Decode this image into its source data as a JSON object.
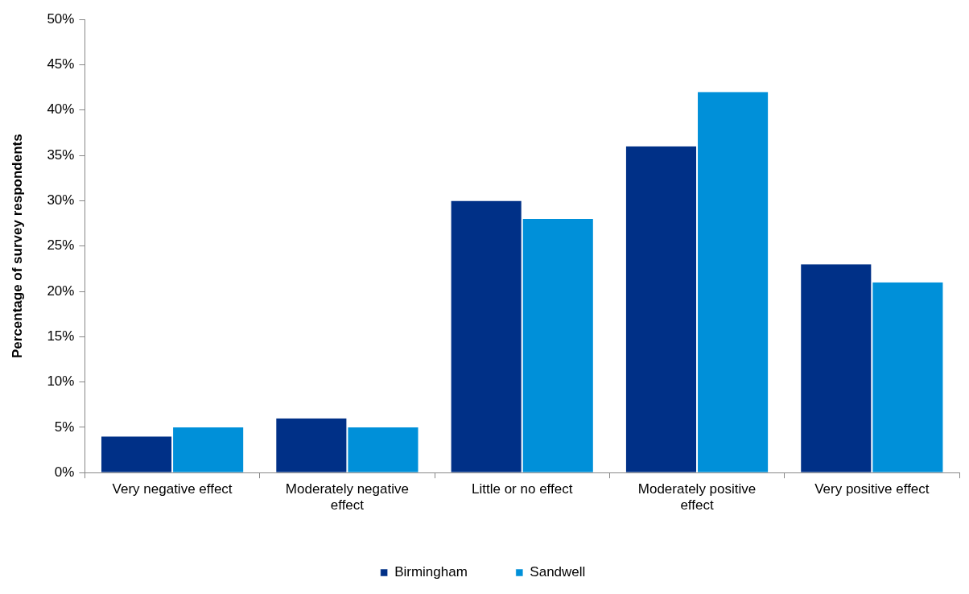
{
  "chart_data": {
    "type": "bar",
    "ylabel": "Percentage of survey respondents",
    "categories": [
      "Very negative effect",
      "Moderately negative effect",
      "Little or no effect",
      "Moderately positive effect",
      "Very positive effect"
    ],
    "series": [
      {
        "name": "Birmingham",
        "color": "#003087",
        "values": [
          4,
          6,
          30,
          36,
          23
        ]
      },
      {
        "name": "Sandwell",
        "color": "#0090d9",
        "values": [
          5,
          5,
          28,
          42,
          21
        ]
      }
    ],
    "ylim": [
      0,
      50
    ],
    "yticks": [
      {
        "value": 0,
        "label": "0%"
      },
      {
        "value": 5,
        "label": "5%"
      },
      {
        "value": 10,
        "label": "10%"
      },
      {
        "value": 15,
        "label": "15%"
      },
      {
        "value": 20,
        "label": "20%"
      },
      {
        "value": 25,
        "label": "25%"
      },
      {
        "value": 30,
        "label": "30%"
      },
      {
        "value": 35,
        "label": "35%"
      },
      {
        "value": 40,
        "label": "40%"
      },
      {
        "value": 45,
        "label": "45%"
      },
      {
        "value": 50,
        "label": "50%"
      }
    ],
    "grid": false,
    "legend": "bottom"
  }
}
